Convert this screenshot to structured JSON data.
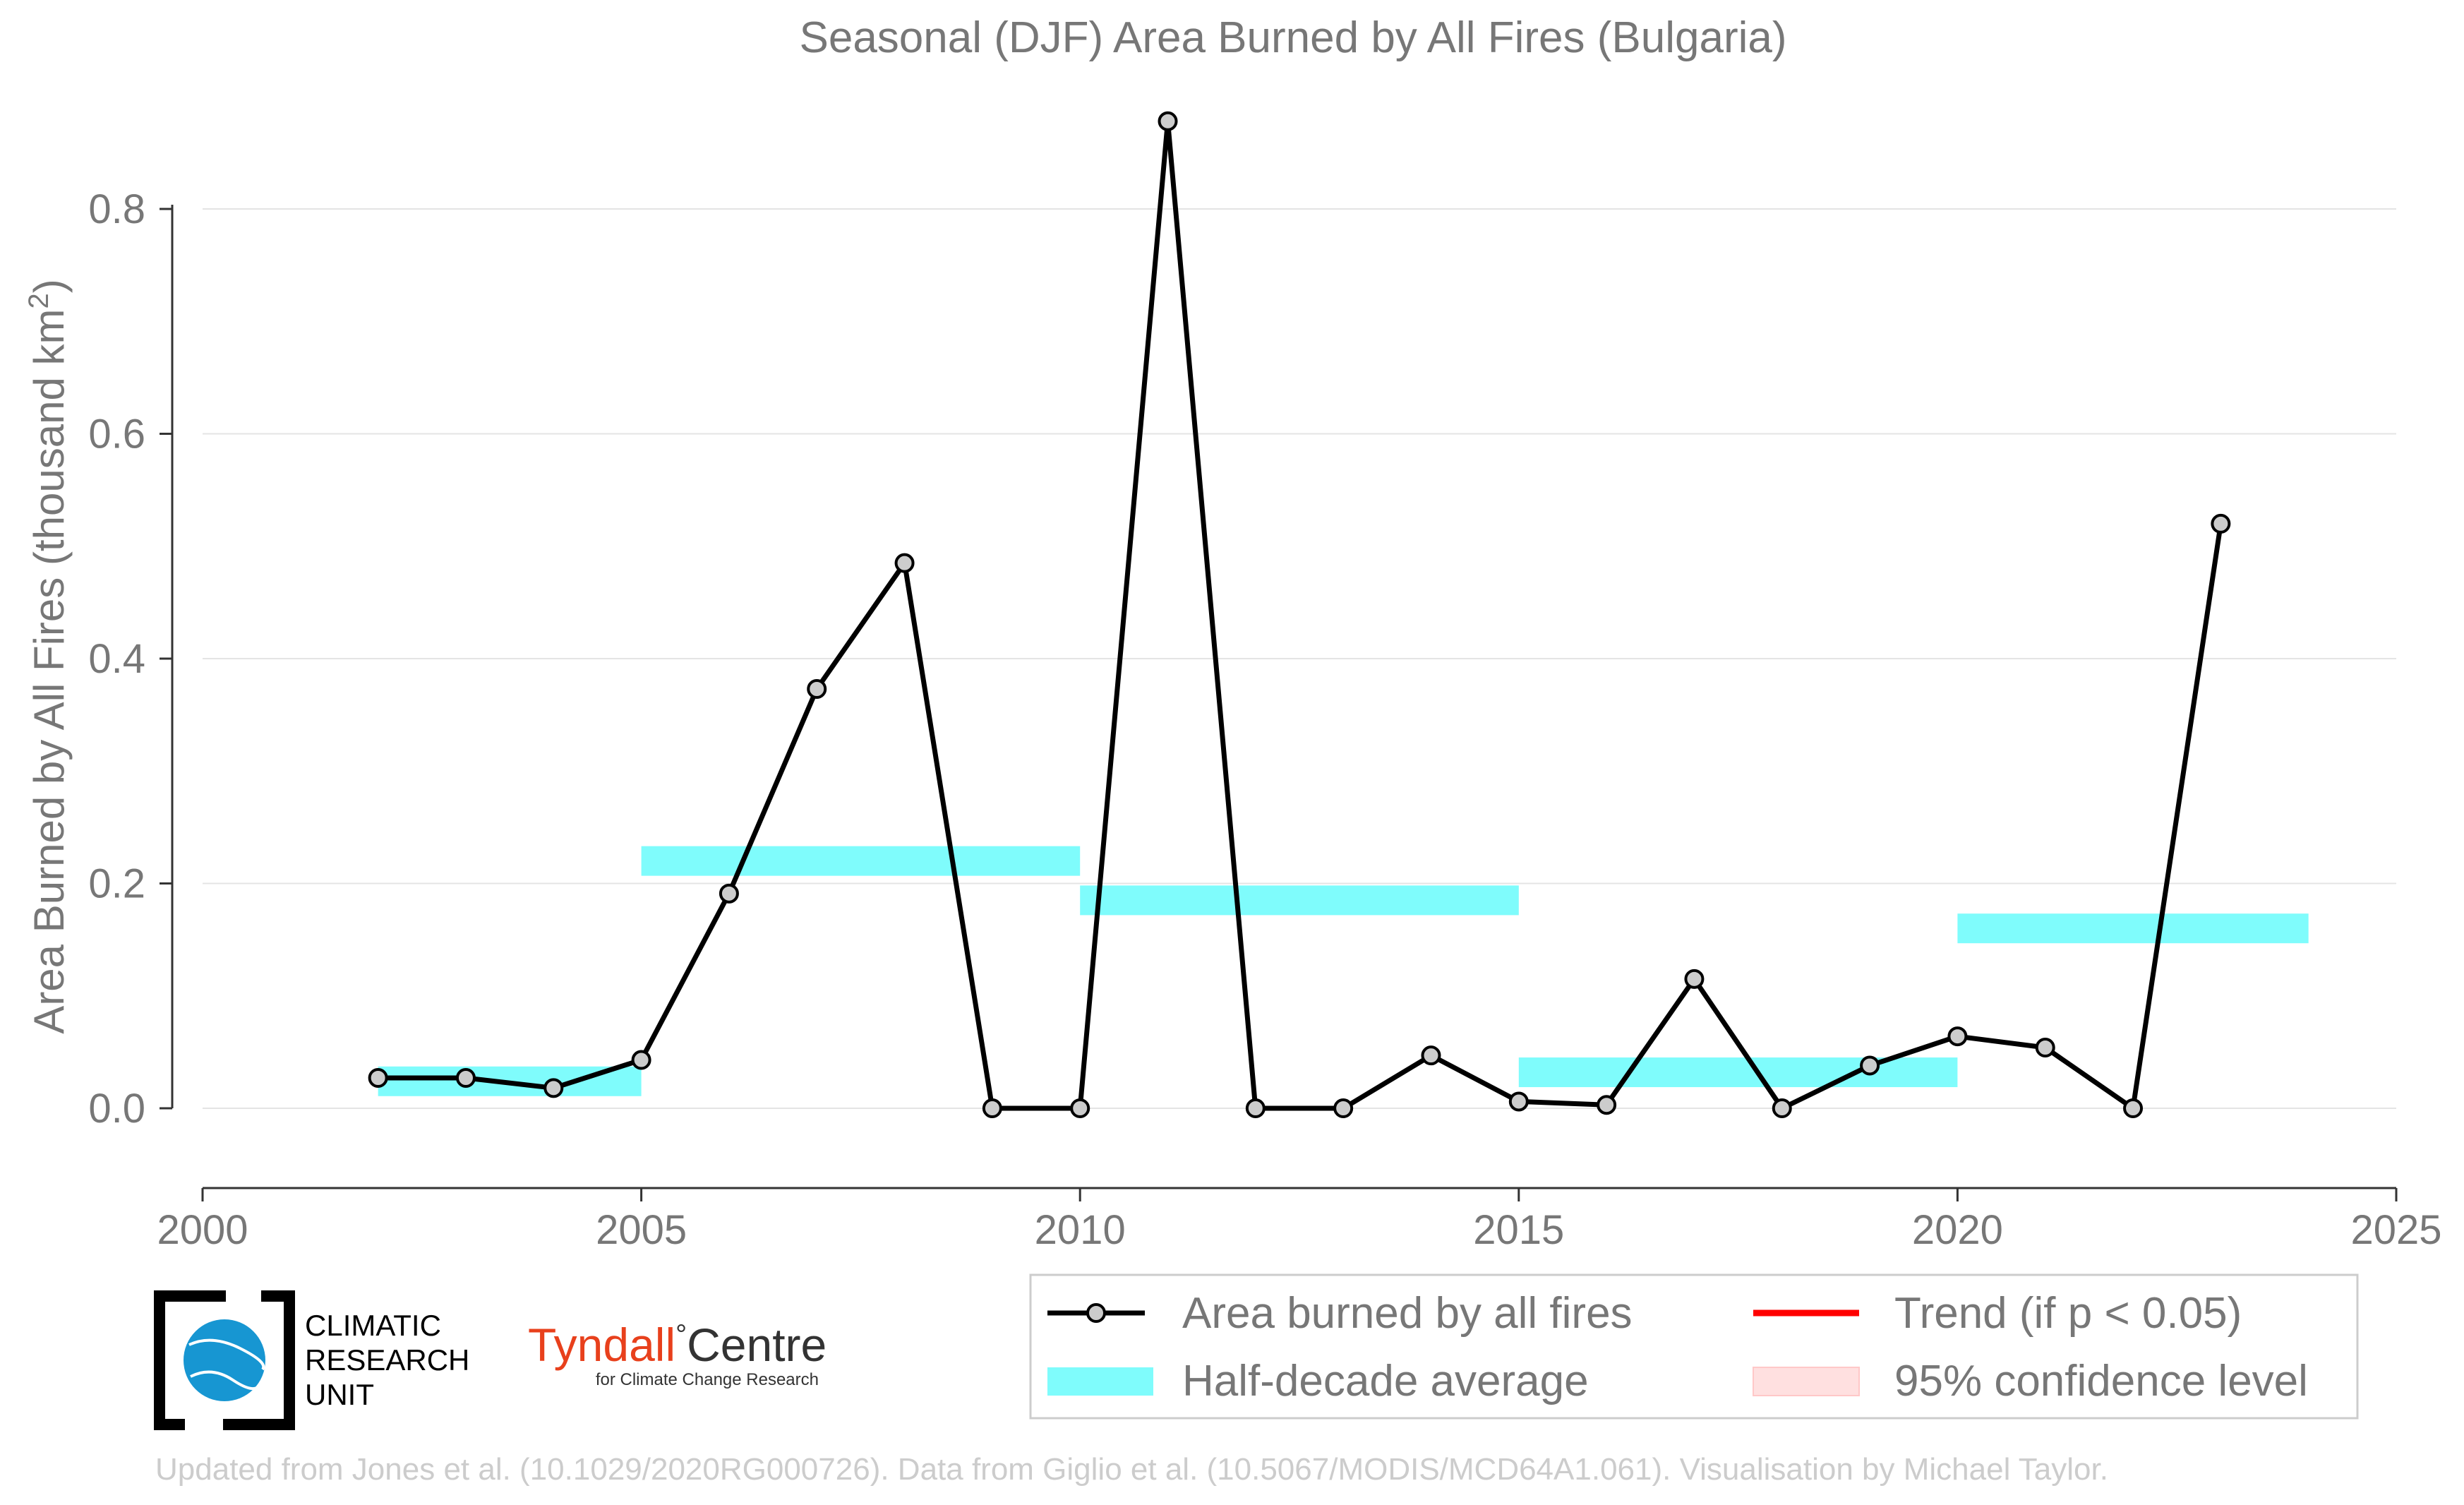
{
  "chart_data": {
    "type": "line",
    "title": "Seasonal (DJF) Area Burned by All Fires (Bulgaria)",
    "xlabel": "",
    "ylabel": "Area Burned by All Fires (thousand km",
    "ylabel_sup": "2",
    "ylabel_close": ")",
    "xlim": [
      2000,
      2025
    ],
    "ylim": [
      -0.07,
      0.9
    ],
    "xticks": [
      "2000",
      "2005",
      "2010",
      "2015",
      "2020",
      "2025"
    ],
    "yticks": [
      "0.0",
      "0.2",
      "0.4",
      "0.6",
      "0.8"
    ],
    "grid": "horizontal",
    "series": [
      {
        "name": "Area burned by all fires",
        "color": "#000000",
        "x": [
          2002,
          2003,
          2004,
          2005,
          2006,
          2007,
          2008,
          2009,
          2010,
          2011,
          2012,
          2013,
          2014,
          2015,
          2016,
          2017,
          2018,
          2019,
          2020,
          2021,
          2022,
          2023
        ],
        "y": [
          0.027,
          0.027,
          0.018,
          0.043,
          0.191,
          0.373,
          0.485,
          0.0,
          0.0,
          0.878,
          0.0,
          0.0,
          0.047,
          0.006,
          0.003,
          0.115,
          0.0,
          0.038,
          0.064,
          0.054,
          0.0,
          0.52
        ]
      }
    ],
    "half_decade_average": {
      "name": "Half-decade average",
      "color": "#7ffcfc",
      "segments": [
        {
          "x0": 2002,
          "x1": 2005,
          "y": 0.024
        },
        {
          "x0": 2005,
          "x1": 2010,
          "y": 0.22
        },
        {
          "x0": 2010,
          "x1": 2015,
          "y": 0.185
        },
        {
          "x0": 2015,
          "x1": 2020,
          "y": 0.032
        },
        {
          "x0": 2020,
          "x1": 2024,
          "y": 0.16
        }
      ]
    },
    "legend": {
      "placement": "bottom-right",
      "items": [
        {
          "label": "Area burned by all fires",
          "kind": "line-marker",
          "color": "#000000"
        },
        {
          "label": "Trend (if p < 0.05)",
          "kind": "line",
          "color": "#ff0000"
        },
        {
          "label": "Half-decade average",
          "kind": "band",
          "color": "#7ffcfc"
        },
        {
          "label": "95% confidence level",
          "kind": "band",
          "color": "#ffe0e0"
        }
      ]
    }
  },
  "logos": {
    "cru_lines": [
      "CLIMATIC",
      "RESEARCH",
      "UNIT"
    ],
    "tyndall_main": "Tyndall",
    "tyndall_degree": "°",
    "tyndall_centre": "Centre",
    "tyndall_sub": "for Climate Change Research"
  },
  "credit": "Updated from Jones et al. (10.1029/2020RG000726). Data from Giglio et al. (10.5067/MODIS/MCD64A1.061). Visualisation by Michael Taylor."
}
